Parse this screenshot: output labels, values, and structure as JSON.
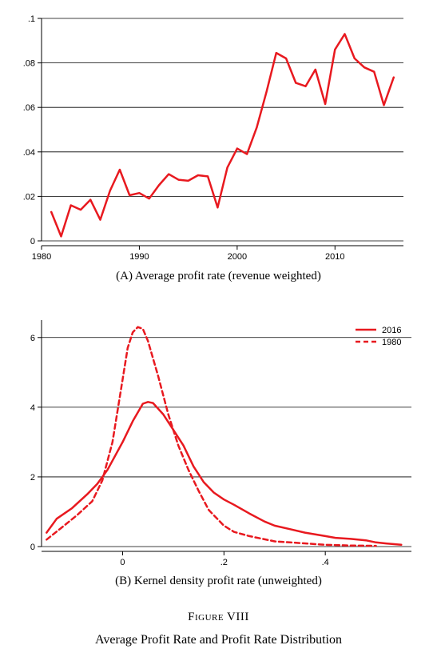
{
  "figure": {
    "label": "Figure VIII",
    "title": "Average Profit Rate and Profit Rate Distribution"
  },
  "chart_data": [
    {
      "type": "line",
      "caption": "(A) Average profit rate (revenue weighted)",
      "xlabel": "",
      "ylabel": "",
      "xlim": [
        1980,
        2017
      ],
      "ylim": [
        0,
        0.1
      ],
      "x_ticks": [
        1980,
        1990,
        2000,
        2010
      ],
      "x_tick_labels": [
        "1980",
        "1990",
        "2000",
        "2010"
      ],
      "y_ticks": [
        0,
        0.02,
        0.04,
        0.06,
        0.08,
        0.1
      ],
      "y_tick_labels": [
        "0",
        ".02",
        ".04",
        ".06",
        ".08",
        ".1"
      ],
      "grid": "horizontal",
      "color": "#e8191f",
      "series": [
        {
          "x": [
            1981,
            1982,
            1983,
            1984,
            1985,
            1986,
            1987,
            1988,
            1989,
            1990,
            1991,
            1992,
            1993,
            1994,
            1995,
            1996,
            1997,
            1998,
            1999,
            2000,
            2001,
            2002,
            2003,
            2004,
            2005,
            2006,
            2007,
            2008,
            2009,
            2010,
            2011,
            2012,
            2013,
            2014,
            2015,
            2016
          ],
          "values": [
            0.013,
            0.002,
            0.016,
            0.014,
            0.0185,
            0.0095,
            0.0225,
            0.032,
            0.0205,
            0.0215,
            0.019,
            0.025,
            0.03,
            0.0275,
            0.027,
            0.0295,
            0.029,
            0.015,
            0.033,
            0.0415,
            0.039,
            0.051,
            0.067,
            0.0845,
            0.082,
            0.071,
            0.0695,
            0.077,
            0.0615,
            0.086,
            0.093,
            0.082,
            0.078,
            0.076,
            0.061,
            0.0735
          ]
        }
      ]
    },
    {
      "type": "line",
      "caption": "(B) Kernel density profit rate (unweighted)",
      "xlabel": "",
      "ylabel": "",
      "xlim": [
        -0.16,
        0.57
      ],
      "ylim": [
        0,
        6.5
      ],
      "x_ticks": [
        0,
        0.2,
        0.4
      ],
      "x_tick_labels": [
        "0",
        ".2",
        ".4"
      ],
      "y_ticks": [
        0,
        2,
        4,
        6
      ],
      "y_tick_labels": [
        "0",
        "2",
        "4",
        "6"
      ],
      "grid": "horizontal",
      "legend_position": "top-right",
      "color": "#e8191f",
      "series": [
        {
          "name": "2016",
          "style": "solid",
          "x": [
            -0.15,
            -0.13,
            -0.1,
            -0.07,
            -0.05,
            -0.03,
            0,
            0.02,
            0.04,
            0.05,
            0.06,
            0.08,
            0.1,
            0.12,
            0.14,
            0.16,
            0.18,
            0.2,
            0.22,
            0.25,
            0.28,
            0.3,
            0.33,
            0.36,
            0.4,
            0.42,
            0.45,
            0.48,
            0.5,
            0.52,
            0.55
          ],
          "values": [
            0.4,
            0.8,
            1.1,
            1.5,
            1.8,
            2.2,
            3.0,
            3.6,
            4.1,
            4.15,
            4.12,
            3.8,
            3.35,
            2.9,
            2.3,
            1.85,
            1.55,
            1.35,
            1.2,
            0.95,
            0.72,
            0.6,
            0.5,
            0.4,
            0.3,
            0.25,
            0.22,
            0.18,
            0.12,
            0.09,
            0.05
          ]
        },
        {
          "name": "1980",
          "style": "dashed",
          "x": [
            -0.15,
            -0.12,
            -0.09,
            -0.06,
            -0.04,
            -0.02,
            0,
            0.01,
            0.02,
            0.03,
            0.04,
            0.05,
            0.07,
            0.09,
            0.11,
            0.13,
            0.15,
            0.17,
            0.2,
            0.22,
            0.25,
            0.3,
            0.35,
            0.4,
            0.45,
            0.5
          ],
          "values": [
            0.2,
            0.55,
            0.9,
            1.3,
            1.9,
            3.0,
            4.8,
            5.7,
            6.15,
            6.3,
            6.25,
            5.9,
            4.9,
            3.8,
            2.9,
            2.2,
            1.6,
            1.05,
            0.6,
            0.42,
            0.3,
            0.15,
            0.1,
            0.05,
            0.03,
            0.02
          ]
        }
      ]
    }
  ]
}
